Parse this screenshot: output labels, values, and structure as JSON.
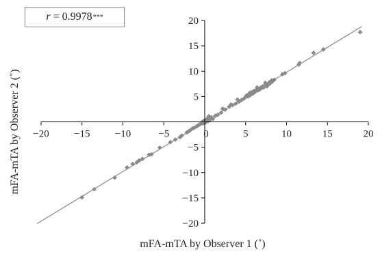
{
  "chart_data": {
    "type": "scatter",
    "title": "",
    "xlabel": "mFA-mTA by Observer 1 (˚)",
    "ylabel": "mFA-mTA by Observer 2 (˚)",
    "xlim": [
      -20,
      20
    ],
    "ylim": [
      -20,
      20
    ],
    "xticks": [
      "−20",
      "−15",
      "−10",
      "−5",
      "0",
      "5",
      "10",
      "15",
      "20"
    ],
    "yticks": [
      "20",
      "15",
      "10",
      "5",
      "0",
      "−5",
      "−10",
      "−15",
      "−20"
    ],
    "grid": false,
    "marker_color": "#8a8a8a",
    "line_color": "#8a8a8a",
    "annotation": {
      "r_symbol": "r",
      "r_value": "= 0.9978",
      "significance": "***"
    },
    "fit_line": {
      "slope": 0.98,
      "intercept": 0.0,
      "x_range": [
        -20.5,
        19.2
      ]
    },
    "points": [
      [
        -15.0,
        -14.9
      ],
      [
        -13.5,
        -13.3
      ],
      [
        -11.0,
        -11.0
      ],
      [
        -9.5,
        -9.0
      ],
      [
        -8.8,
        -8.3
      ],
      [
        -8.3,
        -8.0
      ],
      [
        -8.0,
        -7.6
      ],
      [
        -7.6,
        -7.3
      ],
      [
        -6.8,
        -6.5
      ],
      [
        -6.5,
        -6.4
      ],
      [
        -5.5,
        -5.1
      ],
      [
        -4.2,
        -4.0
      ],
      [
        -3.6,
        -3.5
      ],
      [
        -3.0,
        -3.0
      ],
      [
        -2.8,
        -2.7
      ],
      [
        -2.2,
        -2.1
      ],
      [
        -2.0,
        -1.9
      ],
      [
        -1.8,
        -1.7
      ],
      [
        -1.5,
        -1.3
      ],
      [
        -1.3,
        -1.2
      ],
      [
        -1.0,
        -0.9
      ],
      [
        -0.8,
        -0.7
      ],
      [
        -0.6,
        -0.5
      ],
      [
        -0.4,
        -0.3
      ],
      [
        -0.2,
        -0.3
      ],
      [
        -0.1,
        0.2
      ],
      [
        0.1,
        -0.1
      ],
      [
        0.2,
        0.3
      ],
      [
        0.3,
        0.6
      ],
      [
        0.4,
        0.1
      ],
      [
        0.5,
        1.1
      ],
      [
        0.5,
        0.8
      ],
      [
        0.7,
        0.5
      ],
      [
        0.8,
        0.9
      ],
      [
        1.0,
        0.6
      ],
      [
        1.3,
        1.2
      ],
      [
        1.6,
        1.4
      ],
      [
        2.0,
        1.8
      ],
      [
        2.2,
        2.6
      ],
      [
        2.5,
        2.4
      ],
      [
        3.0,
        3.0
      ],
      [
        3.4,
        3.3
      ],
      [
        3.8,
        3.6
      ],
      [
        4.2,
        4.0
      ],
      [
        4.5,
        4.3
      ],
      [
        4.8,
        4.6
      ],
      [
        5.0,
        4.9
      ],
      [
        5.1,
        5.2
      ],
      [
        5.3,
        5.0
      ],
      [
        5.4,
        5.5
      ],
      [
        5.6,
        5.3
      ],
      [
        5.7,
        5.8
      ],
      [
        5.9,
        5.6
      ],
      [
        6.0,
        6.1
      ],
      [
        6.1,
        5.9
      ],
      [
        6.2,
        6.0
      ],
      [
        6.3,
        6.3
      ],
      [
        6.5,
        6.2
      ],
      [
        6.6,
        6.5
      ],
      [
        6.7,
        6.4
      ],
      [
        6.8,
        6.7
      ],
      [
        6.9,
        6.6
      ],
      [
        7.0,
        6.9
      ],
      [
        7.1,
        7.0
      ],
      [
        7.2,
        6.8
      ],
      [
        7.3,
        7.1
      ],
      [
        7.5,
        7.3
      ],
      [
        7.6,
        7.0
      ],
      [
        7.7,
        7.5
      ],
      [
        7.8,
        7.4
      ],
      [
        7.9,
        7.8
      ],
      [
        8.0,
        7.6
      ],
      [
        8.1,
        7.9
      ],
      [
        8.2,
        8.2
      ],
      [
        8.3,
        8.0
      ],
      [
        8.5,
        8.3
      ],
      [
        9.5,
        9.4
      ],
      [
        9.8,
        9.6
      ],
      [
        11.5,
        11.3
      ],
      [
        11.6,
        11.6
      ],
      [
        13.3,
        13.6
      ],
      [
        14.5,
        14.3
      ],
      [
        19.0,
        17.7
      ],
      [
        4.0,
        4.4
      ],
      [
        3.2,
        3.4
      ],
      [
        5.5,
        5.7
      ],
      [
        6.4,
        6.8
      ],
      [
        7.4,
        7.7
      ],
      [
        -0.3,
        0.0
      ],
      [
        0.0,
        -0.2
      ]
    ]
  }
}
